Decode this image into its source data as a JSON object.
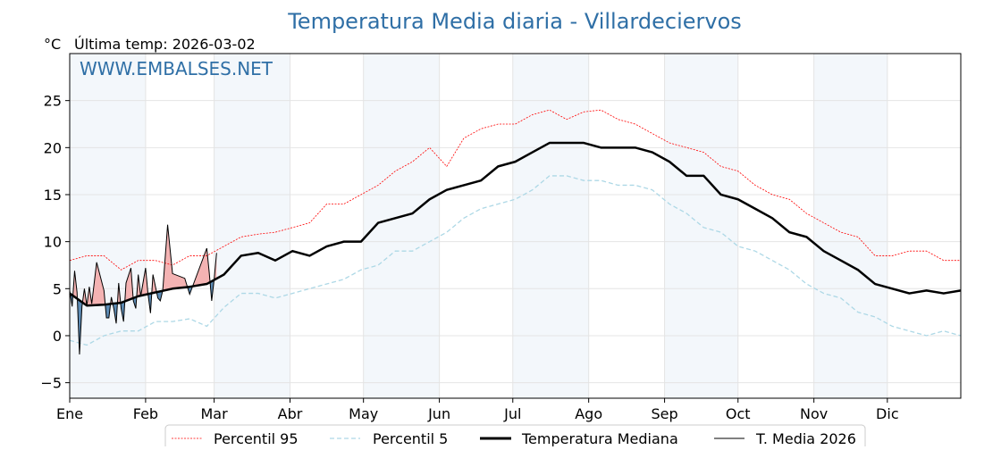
{
  "chart_data": {
    "type": "line",
    "title": "Temperatura Media diaria - Villardeciervos",
    "unit_label": "°C",
    "subtitle": "Última temp: 2026-03-02",
    "watermark": "WWW.EMBALSES.NET",
    "xlabel": "",
    "ylabel": "°C",
    "xlim": [
      0,
      364
    ],
    "ylim": [
      -6.65,
      30
    ],
    "grid": true,
    "legend_position": "bottom-center",
    "y_ticks": [
      -5,
      0,
      5,
      10,
      15,
      20,
      25
    ],
    "y_tick_labels": [
      "−5",
      "0",
      "5",
      "10",
      "15",
      "20",
      "25"
    ],
    "month_labels": [
      "Ene",
      "Feb",
      "Mar",
      "Abr",
      "May",
      "Jun",
      "Jul",
      "Ago",
      "Sep",
      "Oct",
      "Nov",
      "Dic"
    ],
    "month_start_days": [
      0,
      31,
      59,
      90,
      120,
      151,
      181,
      212,
      243,
      273,
      304,
      334
    ],
    "colors": {
      "title": "#2f6fa6",
      "p95": "#ff0000",
      "p5": "#add8e6",
      "median": "#000000",
      "current": "#000000",
      "above_fill": "#f4b3b3",
      "below_fill": "#5d8cb6",
      "month_shade": "#f3f7fb",
      "grid": "#e4e4e4"
    },
    "legend": [
      {
        "name": "Percentil 95",
        "style": "p95"
      },
      {
        "name": "Percentil 5",
        "style": "p5"
      },
      {
        "name": "Temperatura Mediana",
        "style": "median"
      },
      {
        "name": "T. Media 2026",
        "style": "current"
      }
    ],
    "x_days": [
      0,
      7,
      14,
      21,
      28,
      35,
      42,
      49,
      56,
      63,
      70,
      77,
      84,
      91,
      98,
      105,
      112,
      119,
      126,
      133,
      140,
      147,
      154,
      161,
      168,
      175,
      182,
      189,
      196,
      203,
      210,
      217,
      224,
      231,
      238,
      245,
      252,
      259,
      266,
      273,
      280,
      287,
      294,
      301,
      308,
      315,
      322,
      329,
      336,
      343,
      350,
      357,
      364
    ],
    "series": [
      {
        "name": "Percentil 95",
        "values": [
          8.0,
          8.5,
          8.5,
          7.0,
          8.0,
          8.0,
          7.5,
          8.5,
          8.5,
          9.5,
          10.5,
          10.8,
          11.0,
          11.5,
          12.0,
          14.0,
          14.0,
          15.0,
          16.0,
          17.5,
          18.5,
          20.0,
          18.0,
          21.0,
          22.0,
          22.5,
          22.5,
          23.5,
          24.0,
          23.0,
          23.8,
          24.0,
          23.0,
          22.5,
          21.5,
          20.5,
          20.0,
          19.5,
          18.0,
          17.5,
          16.0,
          15.0,
          14.5,
          13.0,
          12.0,
          11.0,
          10.5,
          8.5,
          8.5,
          9.0,
          9.0,
          8.0,
          8.0
        ]
      },
      {
        "name": "Percentil 5",
        "values": [
          -0.5,
          -1.0,
          0.0,
          0.5,
          0.5,
          1.5,
          1.5,
          1.8,
          1.0,
          3.0,
          4.5,
          4.5,
          4.0,
          4.5,
          5.0,
          5.5,
          6.0,
          7.0,
          7.5,
          9.0,
          9.0,
          10.0,
          11.0,
          12.5,
          13.5,
          14.0,
          14.5,
          15.5,
          17.0,
          17.0,
          16.5,
          16.5,
          16.0,
          16.0,
          15.5,
          14.0,
          13.0,
          11.5,
          11.0,
          9.5,
          9.0,
          8.0,
          7.0,
          5.5,
          4.5,
          4.0,
          2.5,
          2.0,
          1.0,
          0.5,
          0.0,
          0.5,
          0.0
        ]
      },
      {
        "name": "Temperatura Mediana",
        "values": [
          4.5,
          3.2,
          3.3,
          3.5,
          4.2,
          4.6,
          5.0,
          5.2,
          5.5,
          6.5,
          8.5,
          8.8,
          8.0,
          9.0,
          8.5,
          9.5,
          10.0,
          10.0,
          12.0,
          12.5,
          13.0,
          14.5,
          15.5,
          16.0,
          16.5,
          18.0,
          18.5,
          19.5,
          20.5,
          20.5,
          20.5,
          20.0,
          20.0,
          20.0,
          19.5,
          18.5,
          17.0,
          17.0,
          15.0,
          14.5,
          13.5,
          12.5,
          11.0,
          10.5,
          9.0,
          8.0,
          7.0,
          5.5,
          5.0,
          4.5,
          4.8,
          4.5,
          4.8
        ]
      }
    ],
    "current_year": {
      "name": "T. Media 2026",
      "points": [
        [
          0,
          4.8
        ],
        [
          1,
          3.1
        ],
        [
          2,
          6.9
        ],
        [
          3,
          4.6
        ],
        [
          4,
          -2.0
        ],
        [
          5,
          3.1
        ],
        [
          6,
          5.0
        ],
        [
          7,
          3.2
        ],
        [
          8,
          5.2
        ],
        [
          9,
          3.4
        ],
        [
          11,
          7.8
        ],
        [
          14,
          4.8
        ],
        [
          15,
          1.9
        ],
        [
          16,
          1.9
        ],
        [
          17,
          4.1
        ],
        [
          18,
          2.9
        ],
        [
          19,
          1.3
        ],
        [
          20,
          5.6
        ],
        [
          21,
          2.9
        ],
        [
          22,
          1.5
        ],
        [
          23,
          5.6
        ],
        [
          25,
          7.2
        ],
        [
          26,
          3.7
        ],
        [
          27,
          2.9
        ],
        [
          28,
          6.5
        ],
        [
          29,
          4.2
        ],
        [
          31,
          7.2
        ],
        [
          32,
          4.4
        ],
        [
          33,
          2.4
        ],
        [
          34,
          6.5
        ],
        [
          36,
          4.0
        ],
        [
          37,
          3.7
        ],
        [
          38,
          4.8
        ],
        [
          40,
          11.8
        ],
        [
          42,
          6.6
        ],
        [
          47,
          6.1
        ],
        [
          49,
          4.4
        ],
        [
          56,
          9.3
        ],
        [
          57,
          6.7
        ],
        [
          58,
          3.7
        ],
        [
          59,
          6.0
        ],
        [
          60,
          8.8
        ]
      ]
    }
  }
}
